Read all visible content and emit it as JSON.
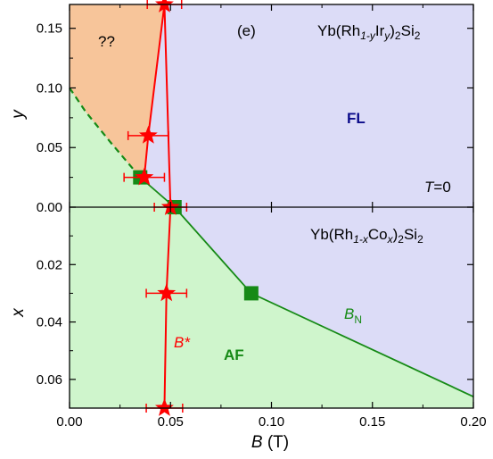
{
  "chart_data": {
    "type": "scatter",
    "panel_label": "(e)",
    "xlabel_italic": "B",
    "xlabel_unit": " (T)",
    "x_range": [
      0.0,
      0.2
    ],
    "x_ticks": [
      "0.00",
      "0.05",
      "0.10",
      "0.15",
      "0.20"
    ],
    "x_tick_values": [
      0.0,
      0.05,
      0.1,
      0.15,
      0.2
    ],
    "grid": false,
    "top_panel": {
      "ylabel": "y",
      "y_range": [
        0.0,
        0.17
      ],
      "y_ticks": [
        "0.00",
        "0.05",
        "0.10",
        "0.15"
      ],
      "y_tick_values": [
        0.0,
        0.05,
        0.1,
        0.15
      ],
      "compound": {
        "pre": "Yb(Rh",
        "sub1": "1-y",
        "mid": "Ir",
        "sub2": "y",
        "post": ")",
        "sub3": "2",
        "end": "Si",
        "sub4": "2"
      },
      "temperature_label": {
        "italic": "T",
        "rest": "=0"
      },
      "region_labels": {
        "unknown": "??",
        "fermi_liquid": "FL"
      },
      "b_star_points": [
        {
          "x": 0.047,
          "y": 0.17,
          "xerr": 0.0085
        },
        {
          "x": 0.039,
          "y": 0.06,
          "xerr": 0.01
        },
        {
          "x": 0.037,
          "y": 0.025,
          "xerr": 0.01
        }
      ],
      "b_n_points": [
        {
          "x": 0.035,
          "y": 0.025
        }
      ],
      "af_boundary_dashed": [
        [
          0.0,
          0.1
        ],
        [
          0.008,
          0.08
        ],
        [
          0.02,
          0.055
        ],
        [
          0.035,
          0.025
        ]
      ]
    },
    "bottom_panel": {
      "ylabel": "x",
      "y_range": [
        0.0,
        0.07
      ],
      "y_ticks": [
        "0.00",
        "0.02",
        "0.04",
        "0.06"
      ],
      "y_tick_values": [
        0.0,
        0.02,
        0.04,
        0.06
      ],
      "compound": {
        "pre": "Yb(Rh",
        "sub1": "1-x",
        "mid": "Co",
        "sub2": "x",
        "post": ")",
        "sub3": "2",
        "end": "Si",
        "sub4": "2"
      },
      "b_star_label": "B*",
      "b_n_label": {
        "main": "B",
        "sub": "N"
      },
      "region_labels": {
        "antiferromagnet": "AF"
      },
      "b_star_points": [
        {
          "x": 0.05,
          "y": 0.0,
          "xerr": 0.008
        },
        {
          "x": 0.048,
          "y": 0.03,
          "xerr": 0.01
        },
        {
          "x": 0.047,
          "y": 0.07,
          "xerr": 0.009
        }
      ],
      "b_n_points": [
        {
          "x": 0.052,
          "y": 0.0
        },
        {
          "x": 0.09,
          "y": 0.03
        }
      ],
      "b_n_line": [
        [
          0.052,
          0.0
        ],
        [
          0.09,
          0.03
        ],
        [
          0.2,
          0.066
        ]
      ]
    },
    "colors": {
      "fermi_liquid_region": "#dcdcf7",
      "antiferromagnet_region": "#cff5cc",
      "unknown_region": "#f7c59a",
      "b_star": "#ff0000",
      "b_n": "#168a16",
      "fl_label": "#0b0b8a",
      "af_label": "#168a16"
    }
  }
}
